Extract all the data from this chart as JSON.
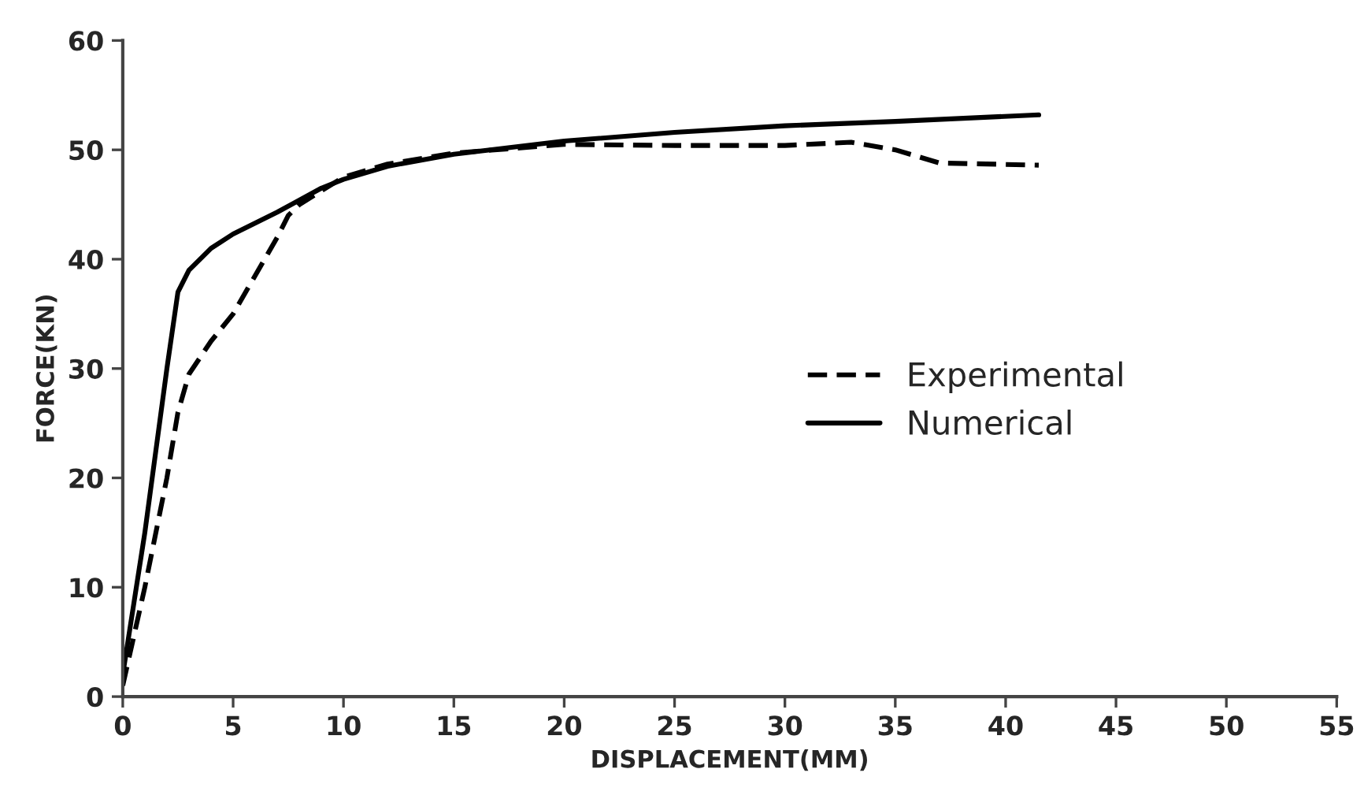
{
  "chart_data": {
    "type": "line",
    "xlabel": "DISPLACEMENT(MM)",
    "ylabel": "FORCE(KN)",
    "xlim": [
      0,
      55
    ],
    "xticks": [
      0,
      5,
      10,
      15,
      20,
      25,
      30,
      35,
      40,
      45,
      50,
      55
    ],
    "ylim": [
      0,
      60
    ],
    "yticks": [
      0,
      10,
      20,
      30,
      40,
      50,
      60
    ],
    "grid": false,
    "legend": "right",
    "marker": "none",
    "series": [
      {
        "name": "Experimental",
        "color": "#000000",
        "line_style": "dashed",
        "x": [
          0,
          1,
          2,
          2.5,
          3,
          4,
          5,
          6,
          7,
          7.5,
          8,
          10,
          12,
          15,
          20,
          25,
          30,
          33,
          35,
          37,
          41.5
        ],
        "values": [
          1,
          10,
          20,
          26,
          29.5,
          32.5,
          35,
          38.5,
          42,
          44,
          45,
          47.5,
          48.7,
          49.7,
          50.5,
          50.4,
          50.4,
          50.7,
          50,
          48.8,
          48.6
        ]
      },
      {
        "name": "Numerical",
        "color": "#000000",
        "line_style": "solid",
        "x": [
          0,
          1,
          2,
          2.5,
          3,
          4,
          5,
          7,
          9,
          10,
          12,
          15,
          20,
          25,
          30,
          35,
          41.5
        ],
        "values": [
          2,
          15,
          30,
          37,
          39,
          41,
          42.3,
          44.3,
          46.5,
          47.3,
          48.5,
          49.6,
          50.8,
          51.6,
          52.2,
          52.6,
          53.2
        ]
      }
    ]
  }
}
